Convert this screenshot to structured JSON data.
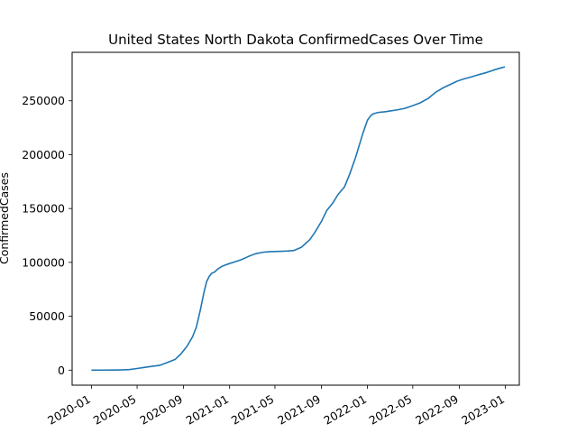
{
  "chart_data": {
    "type": "line",
    "title": "United States North Dakota ConfirmedCases Over Time",
    "xlabel": "",
    "ylabel": "ConfirmedCases",
    "xlim": [
      "2019-11-11",
      "2023-02-07"
    ],
    "ylim": [
      -14000,
      295000
    ],
    "grid": false,
    "legend": "none",
    "x_ticks": [
      "2020-01",
      "2020-05",
      "2020-09",
      "2021-01",
      "2021-05",
      "2021-09",
      "2022-01",
      "2022-05",
      "2022-09",
      "2023-01"
    ],
    "y_ticks": [
      0,
      50000,
      100000,
      150000,
      200000,
      250000
    ],
    "colors": {
      "line": "#1f77b4"
    },
    "series": [
      {
        "x": [
          "2020-01-01",
          "2020-02-01",
          "2020-03-01",
          "2020-03-20",
          "2020-04-10",
          "2020-05-01",
          "2020-05-20",
          "2020-06-10",
          "2020-07-01",
          "2020-07-20",
          "2020-08-10",
          "2020-08-25",
          "2020-09-10",
          "2020-09-25",
          "2020-10-05",
          "2020-10-15",
          "2020-10-25",
          "2020-11-01",
          "2020-11-08",
          "2020-11-15",
          "2020-11-22",
          "2020-12-01",
          "2020-12-10",
          "2020-12-20",
          "2021-01-01",
          "2021-01-15",
          "2021-02-01",
          "2021-02-20",
          "2021-03-10",
          "2021-04-01",
          "2021-04-20",
          "2021-05-10",
          "2021-06-01",
          "2021-06-20",
          "2021-07-10",
          "2021-08-01",
          "2021-08-15",
          "2021-09-01",
          "2021-09-15",
          "2021-10-01",
          "2021-10-15",
          "2021-11-01",
          "2021-11-15",
          "2021-12-01",
          "2021-12-20",
          "2022-01-01",
          "2022-01-07",
          "2022-01-12",
          "2022-01-17",
          "2022-01-22",
          "2022-01-27",
          "2022-02-01",
          "2022-02-10",
          "2022-02-20",
          "2022-03-01",
          "2022-03-20",
          "2022-04-10",
          "2022-05-01",
          "2022-05-20",
          "2022-06-10",
          "2022-07-01",
          "2022-07-20",
          "2022-08-10",
          "2022-08-25",
          "2022-09-10",
          "2022-10-01",
          "2022-10-20",
          "2022-11-10",
          "2022-12-01",
          "2022-12-20",
          "2022-12-31"
        ],
        "y": [
          0,
          0,
          50,
          200,
          500,
          1500,
          2500,
          3500,
          4500,
          7000,
          10000,
          15000,
          22000,
          31000,
          40000,
          55000,
          72000,
          82000,
          87000,
          90000,
          91000,
          94000,
          96000,
          97500,
          99000,
          100500,
          102500,
          105500,
          108000,
          109500,
          110000,
          110200,
          110500,
          111000,
          114000,
          121000,
          128000,
          138000,
          148000,
          155000,
          163000,
          170000,
          182000,
          198000,
          220000,
          232000,
          235000,
          237000,
          238000,
          238500,
          239000,
          239300,
          239600,
          240000,
          240500,
          241500,
          243000,
          245500,
          248000,
          252000,
          258000,
          262000,
          265500,
          268000,
          270000,
          272000,
          274000,
          276000,
          278500,
          280500,
          281500
        ]
      }
    ]
  }
}
